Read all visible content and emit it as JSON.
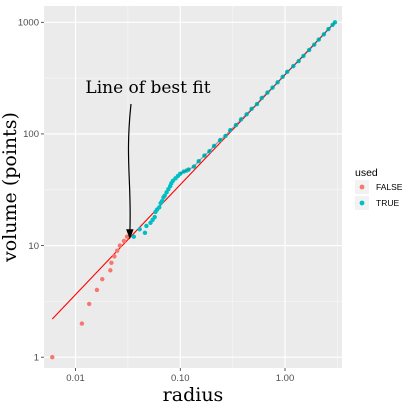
{
  "chart_data": {
    "type": "scatter",
    "title": "",
    "xlabel": "radius",
    "ylabel": "volume (points)",
    "x_scale": "log10",
    "y_scale": "log10",
    "xlim": [
      0.005,
      3.5
    ],
    "ylim": [
      0.8,
      1400
    ],
    "x_ticks": [
      {
        "value": 0.01,
        "label": "0.01"
      },
      {
        "value": 0.1,
        "label": "0.10"
      },
      {
        "value": 1,
        "label": "1.00"
      }
    ],
    "y_ticks": [
      {
        "value": 1,
        "label": "1"
      },
      {
        "value": 10,
        "label": "10"
      },
      {
        "value": 100,
        "label": "100"
      },
      {
        "value": 1000,
        "label": "1000"
      }
    ],
    "grid": true,
    "panel_background": "#ebebeb",
    "legend": {
      "title": "used",
      "position": "right",
      "entries": [
        {
          "label": "FALSE",
          "color": "#F8766D"
        },
        {
          "label": "TRUE",
          "color": "#00BFC4"
        }
      ]
    },
    "fit_line": {
      "color": "#ff0000",
      "from": [
        0.006,
        2.2
      ],
      "to": [
        3.0,
        1000
      ]
    },
    "annotation": {
      "text": "Line of best fit",
      "arrow_target": [
        0.033,
        11.5
      ]
    },
    "series": [
      {
        "name": "FALSE",
        "color": "#F8766D",
        "points": [
          [
            0.006,
            1
          ],
          [
            0.0115,
            2
          ],
          [
            0.0135,
            3
          ],
          [
            0.016,
            4
          ],
          [
            0.018,
            5
          ],
          [
            0.0215,
            6
          ],
          [
            0.022,
            7
          ],
          [
            0.0235,
            8
          ],
          [
            0.025,
            9
          ],
          [
            0.0265,
            10
          ],
          [
            0.029,
            11
          ],
          [
            0.031,
            12
          ]
        ]
      },
      {
        "name": "TRUE",
        "color": "#00BFC4",
        "points": [
          [
            0.036,
            12
          ],
          [
            0.041,
            14
          ],
          [
            0.046,
            13
          ],
          [
            0.0475,
            15
          ],
          [
            0.052,
            16
          ],
          [
            0.0545,
            17
          ],
          [
            0.057,
            18
          ],
          [
            0.058,
            20
          ],
          [
            0.06,
            21
          ],
          [
            0.063,
            22
          ],
          [
            0.065,
            24
          ],
          [
            0.067,
            25
          ],
          [
            0.069,
            27
          ],
          [
            0.071,
            28
          ],
          [
            0.074,
            30
          ],
          [
            0.077,
            32
          ],
          [
            0.08,
            34
          ],
          [
            0.082,
            36
          ],
          [
            0.085,
            38
          ],
          [
            0.09,
            40
          ],
          [
            0.095,
            42
          ],
          [
            0.1,
            44
          ],
          [
            0.108,
            46
          ],
          [
            0.115,
            47
          ],
          [
            0.12,
            48
          ],
          [
            0.135,
            51
          ],
          [
            0.15,
            57
          ],
          [
            0.17,
            64
          ],
          [
            0.19,
            70
          ],
          [
            0.21,
            78
          ],
          [
            0.24,
            88
          ],
          [
            0.27,
            96
          ],
          [
            0.3,
            108
          ],
          [
            0.34,
            120
          ],
          [
            0.38,
            135
          ],
          [
            0.43,
            150
          ],
          [
            0.48,
            168
          ],
          [
            0.54,
            185
          ],
          [
            0.6,
            210
          ],
          [
            0.68,
            235
          ],
          [
            0.76,
            260
          ],
          [
            0.85,
            290
          ],
          [
            0.95,
            325
          ],
          [
            1.05,
            360
          ],
          [
            1.2,
            405
          ],
          [
            1.35,
            450
          ],
          [
            1.5,
            500
          ],
          [
            1.7,
            565
          ],
          [
            1.9,
            630
          ],
          [
            2.1,
            700
          ],
          [
            2.35,
            780
          ],
          [
            2.6,
            870
          ],
          [
            2.85,
            950
          ],
          [
            3.0,
            1000
          ]
        ]
      }
    ]
  }
}
